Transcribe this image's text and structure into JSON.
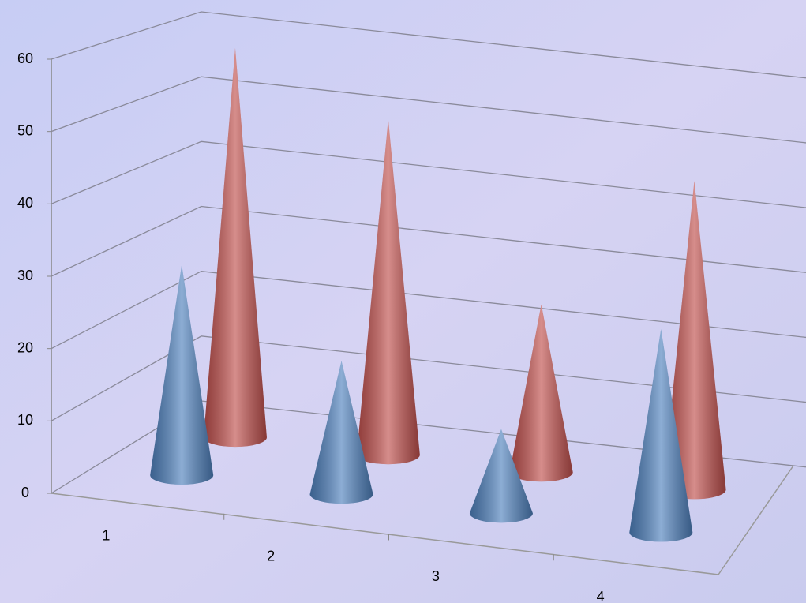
{
  "chart_data": {
    "type": "cone3d",
    "categories": [
      "1",
      "2",
      "3",
      "4"
    ],
    "series": [
      {
        "color": "#4f81bd",
        "values": [
          30,
          19,
          12,
          29
        ]
      },
      {
        "color": "#c0504d",
        "values": [
          58,
          50,
          25,
          46
        ]
      }
    ],
    "ylim": [
      0,
      60
    ],
    "yticks": [
      0,
      10,
      20,
      30,
      40,
      50,
      60
    ],
    "grid": true
  }
}
